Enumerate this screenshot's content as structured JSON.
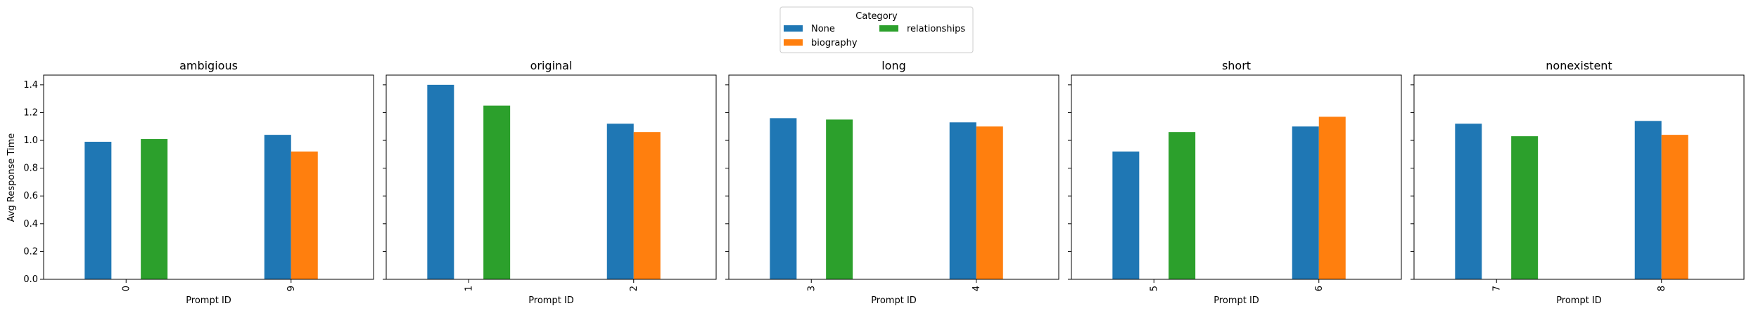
{
  "legend": {
    "title": "Category",
    "entries": [
      {
        "label": "None",
        "color": "#1f77b4"
      },
      {
        "label": "relationships",
        "color": "#2ca02c"
      },
      {
        "label": "biography",
        "color": "#ff7f0e"
      }
    ],
    "placement": "top-center"
  },
  "shared_ylabel": "Avg Response Time",
  "shared_xlabel": "Prompt ID",
  "chart_data": [
    {
      "type": "bar",
      "title": "ambigious",
      "xlabel": "Prompt ID",
      "ylabel": "Avg Response Time",
      "ylim": [
        0,
        1.47
      ],
      "yticks": [
        "0.0",
        "0.2",
        "0.4",
        "0.6",
        "0.8",
        "1.0",
        "1.2",
        "1.4"
      ],
      "categories": [
        "0",
        "9"
      ],
      "series": [
        {
          "name": "None",
          "color": "#1f77b4",
          "values": [
            0.99,
            1.04
          ]
        },
        {
          "name": "relationships",
          "color": "#2ca02c",
          "values": [
            1.01,
            null
          ]
        },
        {
          "name": "biography",
          "color": "#ff7f0e",
          "values": [
            null,
            0.92
          ]
        }
      ],
      "grid": false
    },
    {
      "type": "bar",
      "title": "original",
      "xlabel": "Prompt ID",
      "ylim": [
        0,
        1.47
      ],
      "categories": [
        "1",
        "2"
      ],
      "series": [
        {
          "name": "None",
          "color": "#1f77b4",
          "values": [
            1.4,
            1.12
          ]
        },
        {
          "name": "relationships",
          "color": "#2ca02c",
          "values": [
            1.25,
            null
          ]
        },
        {
          "name": "biography",
          "color": "#ff7f0e",
          "values": [
            null,
            1.06
          ]
        }
      ],
      "grid": false
    },
    {
      "type": "bar",
      "title": "long",
      "xlabel": "Prompt ID",
      "ylim": [
        0,
        1.47
      ],
      "categories": [
        "3",
        "4"
      ],
      "series": [
        {
          "name": "None",
          "color": "#1f77b4",
          "values": [
            1.16,
            1.13
          ]
        },
        {
          "name": "relationships",
          "color": "#2ca02c",
          "values": [
            1.15,
            null
          ]
        },
        {
          "name": "biography",
          "color": "#ff7f0e",
          "values": [
            null,
            1.1
          ]
        }
      ],
      "grid": false
    },
    {
      "type": "bar",
      "title": "short",
      "xlabel": "Prompt ID",
      "ylim": [
        0,
        1.47
      ],
      "categories": [
        "5",
        "6"
      ],
      "series": [
        {
          "name": "None",
          "color": "#1f77b4",
          "values": [
            0.92,
            1.1
          ]
        },
        {
          "name": "relationships",
          "color": "#2ca02c",
          "values": [
            1.06,
            null
          ]
        },
        {
          "name": "biography",
          "color": "#ff7f0e",
          "values": [
            null,
            1.17
          ]
        }
      ],
      "grid": false
    },
    {
      "type": "bar",
      "title": "nonexistent",
      "xlabel": "Prompt ID",
      "ylim": [
        0,
        1.47
      ],
      "categories": [
        "7",
        "8"
      ],
      "series": [
        {
          "name": "None",
          "color": "#1f77b4",
          "values": [
            1.12,
            1.14
          ]
        },
        {
          "name": "relationships",
          "color": "#2ca02c",
          "values": [
            1.03,
            null
          ]
        },
        {
          "name": "biography",
          "color": "#ff7f0e",
          "values": [
            null,
            1.04
          ]
        }
      ],
      "grid": false
    }
  ]
}
